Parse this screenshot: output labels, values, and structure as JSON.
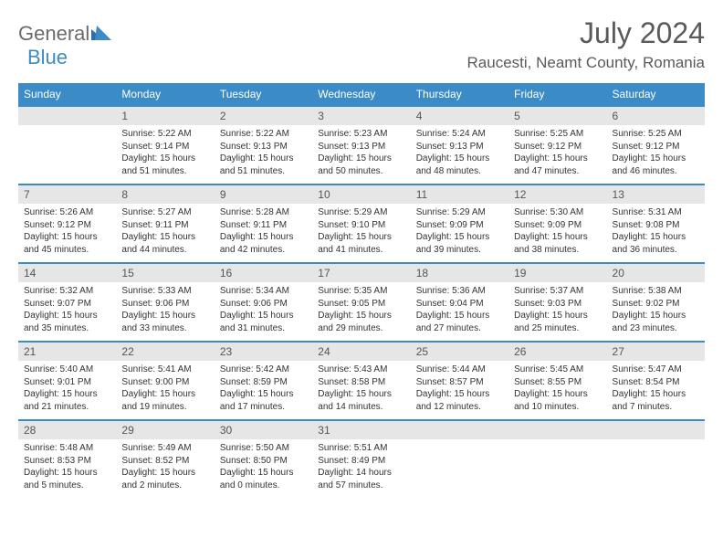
{
  "logo": {
    "general": "General",
    "blue": "Blue"
  },
  "title": "July 2024",
  "location": "Raucesti, Neamt County, Romania",
  "colors": {
    "header_bg": "#3b8bc6",
    "daynum_bg": "#e6e6e6",
    "border": "#3b8bc6"
  },
  "weekdays": [
    "Sunday",
    "Monday",
    "Tuesday",
    "Wednesday",
    "Thursday",
    "Friday",
    "Saturday"
  ],
  "weeks": [
    [
      null,
      {
        "n": "1",
        "sr": "5:22 AM",
        "ss": "9:14 PM",
        "dl": "15 hours and 51 minutes."
      },
      {
        "n": "2",
        "sr": "5:22 AM",
        "ss": "9:13 PM",
        "dl": "15 hours and 51 minutes."
      },
      {
        "n": "3",
        "sr": "5:23 AM",
        "ss": "9:13 PM",
        "dl": "15 hours and 50 minutes."
      },
      {
        "n": "4",
        "sr": "5:24 AM",
        "ss": "9:13 PM",
        "dl": "15 hours and 48 minutes."
      },
      {
        "n": "5",
        "sr": "5:25 AM",
        "ss": "9:12 PM",
        "dl": "15 hours and 47 minutes."
      },
      {
        "n": "6",
        "sr": "5:25 AM",
        "ss": "9:12 PM",
        "dl": "15 hours and 46 minutes."
      }
    ],
    [
      {
        "n": "7",
        "sr": "5:26 AM",
        "ss": "9:12 PM",
        "dl": "15 hours and 45 minutes."
      },
      {
        "n": "8",
        "sr": "5:27 AM",
        "ss": "9:11 PM",
        "dl": "15 hours and 44 minutes."
      },
      {
        "n": "9",
        "sr": "5:28 AM",
        "ss": "9:11 PM",
        "dl": "15 hours and 42 minutes."
      },
      {
        "n": "10",
        "sr": "5:29 AM",
        "ss": "9:10 PM",
        "dl": "15 hours and 41 minutes."
      },
      {
        "n": "11",
        "sr": "5:29 AM",
        "ss": "9:09 PM",
        "dl": "15 hours and 39 minutes."
      },
      {
        "n": "12",
        "sr": "5:30 AM",
        "ss": "9:09 PM",
        "dl": "15 hours and 38 minutes."
      },
      {
        "n": "13",
        "sr": "5:31 AM",
        "ss": "9:08 PM",
        "dl": "15 hours and 36 minutes."
      }
    ],
    [
      {
        "n": "14",
        "sr": "5:32 AM",
        "ss": "9:07 PM",
        "dl": "15 hours and 35 minutes."
      },
      {
        "n": "15",
        "sr": "5:33 AM",
        "ss": "9:06 PM",
        "dl": "15 hours and 33 minutes."
      },
      {
        "n": "16",
        "sr": "5:34 AM",
        "ss": "9:06 PM",
        "dl": "15 hours and 31 minutes."
      },
      {
        "n": "17",
        "sr": "5:35 AM",
        "ss": "9:05 PM",
        "dl": "15 hours and 29 minutes."
      },
      {
        "n": "18",
        "sr": "5:36 AM",
        "ss": "9:04 PM",
        "dl": "15 hours and 27 minutes."
      },
      {
        "n": "19",
        "sr": "5:37 AM",
        "ss": "9:03 PM",
        "dl": "15 hours and 25 minutes."
      },
      {
        "n": "20",
        "sr": "5:38 AM",
        "ss": "9:02 PM",
        "dl": "15 hours and 23 minutes."
      }
    ],
    [
      {
        "n": "21",
        "sr": "5:40 AM",
        "ss": "9:01 PM",
        "dl": "15 hours and 21 minutes."
      },
      {
        "n": "22",
        "sr": "5:41 AM",
        "ss": "9:00 PM",
        "dl": "15 hours and 19 minutes."
      },
      {
        "n": "23",
        "sr": "5:42 AM",
        "ss": "8:59 PM",
        "dl": "15 hours and 17 minutes."
      },
      {
        "n": "24",
        "sr": "5:43 AM",
        "ss": "8:58 PM",
        "dl": "15 hours and 14 minutes."
      },
      {
        "n": "25",
        "sr": "5:44 AM",
        "ss": "8:57 PM",
        "dl": "15 hours and 12 minutes."
      },
      {
        "n": "26",
        "sr": "5:45 AM",
        "ss": "8:55 PM",
        "dl": "15 hours and 10 minutes."
      },
      {
        "n": "27",
        "sr": "5:47 AM",
        "ss": "8:54 PM",
        "dl": "15 hours and 7 minutes."
      }
    ],
    [
      {
        "n": "28",
        "sr": "5:48 AM",
        "ss": "8:53 PM",
        "dl": "15 hours and 5 minutes."
      },
      {
        "n": "29",
        "sr": "5:49 AM",
        "ss": "8:52 PM",
        "dl": "15 hours and 2 minutes."
      },
      {
        "n": "30",
        "sr": "5:50 AM",
        "ss": "8:50 PM",
        "dl": "15 hours and 0 minutes."
      },
      {
        "n": "31",
        "sr": "5:51 AM",
        "ss": "8:49 PM",
        "dl": "14 hours and 57 minutes."
      },
      null,
      null,
      null
    ]
  ],
  "labels": {
    "sunrise": "Sunrise:",
    "sunset": "Sunset:",
    "daylight": "Daylight:"
  }
}
